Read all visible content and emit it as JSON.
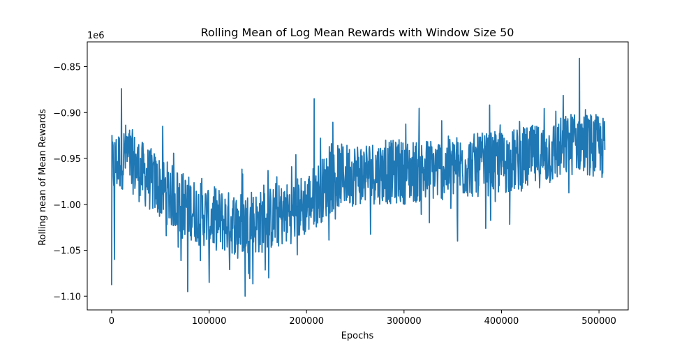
{
  "chart_data": {
    "type": "line",
    "title": "Rolling Mean of Log Mean Rewards with Window Size 50",
    "xlabel": "Epochs",
    "ylabel": "Rolling nean of Mean Rewards",
    "y_offset_label": "1e6",
    "xlim": [
      -25000,
      530000
    ],
    "ylim": [
      -1.115,
      -0.823
    ],
    "x_ticks": [
      0,
      100000,
      200000,
      300000,
      400000,
      500000
    ],
    "x_tick_labels": [
      "0",
      "100000",
      "200000",
      "300000",
      "400000",
      "500000"
    ],
    "y_ticks": [
      -1.1,
      -1.05,
      -1.0,
      -0.95,
      -0.9,
      -0.85
    ],
    "y_tick_labels": [
      "−1.10",
      "−1.05",
      "−1.00",
      "−0.95",
      "−0.90",
      "−0.85"
    ],
    "grid": false,
    "series": [
      {
        "color": "#1f77b4",
        "x_range": [
          0,
          506000
        ],
        "trend": [
          [
            0,
            -0.96
          ],
          [
            15000,
            -0.945
          ],
          [
            30000,
            -0.965
          ],
          [
            60000,
            -0.99
          ],
          [
            90000,
            -1.01
          ],
          [
            120000,
            -1.02
          ],
          [
            150000,
            -1.02
          ],
          [
            180000,
            -1.01
          ],
          [
            200000,
            -1.0
          ],
          [
            230000,
            -0.97
          ],
          [
            260000,
            -0.965
          ],
          [
            300000,
            -0.965
          ],
          [
            350000,
            -0.96
          ],
          [
            400000,
            -0.955
          ],
          [
            450000,
            -0.945
          ],
          [
            480000,
            -0.93
          ],
          [
            506000,
            -0.94
          ]
        ],
        "extremes": [
          [
            0,
            -1.088
          ],
          [
            3000,
            -1.06
          ],
          [
            10000,
            -0.874
          ],
          [
            78000,
            -1.095
          ],
          [
            100000,
            -1.085
          ],
          [
            137000,
            -1.1
          ],
          [
            208000,
            -0.885
          ],
          [
            355000,
            -1.04
          ],
          [
            480000,
            -0.841
          ]
        ]
      }
    ]
  }
}
